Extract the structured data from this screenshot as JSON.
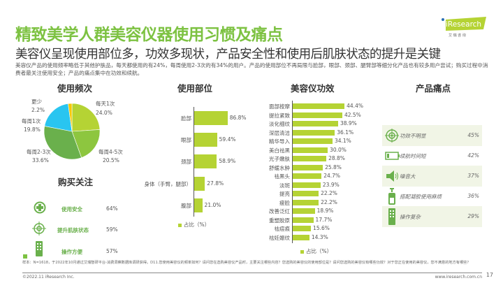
{
  "header": {
    "title": "精致美学人群美容仪器使用习惯及痛点",
    "subtitle": "美容仪呈现使用部位多，功效多现状，产品安全性和使用后肌肤状态的提升是关键",
    "description": "美容仪产品的使用频率略低于其他护肤品，每天都使用的有24%，每周使用2-3次的有34%的用户。产品的使用部位不再局限与脸部，眼部、颈部、腿臂部等细分化产品也有较多用户尝试；购买过程中消费者最关注使用安全；产品的痛点集中在功效和续航。",
    "logo_text": "iResearch",
    "logo_sub": "艾 瑞 咨 询"
  },
  "colors": {
    "brand": "#7dc242",
    "bar": "#b5d334"
  },
  "chart_data": [
    {
      "type": "pie",
      "title": "使用频次",
      "categories": [
        "每天1次",
        "每周4-5次",
        "每周2-3次",
        "每周1次",
        "更少"
      ],
      "values": [
        24.0,
        20.5,
        33.6,
        19.8,
        2.2
      ],
      "labels": [
        "24.0%",
        "20.5%",
        "33.6%",
        "19.8%",
        "2.2%"
      ],
      "colors": [
        "#b5d334",
        "#8dc63f",
        "#6ab04c",
        "#29c5f0",
        "#f7c800"
      ]
    },
    {
      "type": "bar",
      "title": "使用部位",
      "categories": [
        "脸部",
        "眼部",
        "颈部",
        "身体（手臂，腿部）",
        "腹部"
      ],
      "values": [
        86.8,
        59.4,
        58.9,
        27.8,
        21.0
      ],
      "labels": [
        "86.8%",
        "59.4%",
        "58.9%",
        "27.8%",
        "21.0%"
      ],
      "legend": "占比（%）",
      "xlim": [
        0,
        100
      ]
    },
    {
      "type": "bar",
      "title": "美容仪功效",
      "categories": [
        "面部按摩",
        "提拉紧致",
        "淡化细纹",
        "深层清洁",
        "精华导入",
        "美白祛黑",
        "光子嫩肤",
        "舒缓水肿",
        "祛黑头",
        "淡斑",
        "提亮",
        "瘦脸",
        "改善泛红",
        "重塑胶原",
        "祛痘痕",
        "祛妊娠纹"
      ],
      "values": [
        44.4,
        42.5,
        38.9,
        36.1,
        34.1,
        30.0,
        28.8,
        25.8,
        24.7,
        23.9,
        22.2,
        22.2,
        18.9,
        17.7,
        15.6,
        14.3
      ],
      "labels": [
        "44.4%",
        "42.5%",
        "38.9%",
        "36.1%",
        "34.1%",
        "30.0%",
        "28.8%",
        "25.8%",
        "24.7%",
        "23.9%",
        "22.2%",
        "22.2%",
        "18.9%",
        "17.7%",
        "15.6%",
        "14.3%"
      ],
      "legend": "占比（%）",
      "xlim": [
        0,
        50
      ]
    },
    {
      "type": "table",
      "title": "购买关注",
      "rows": [
        {
          "icon": "medical-cross-icon",
          "label": "使用安全",
          "value": "64%"
        },
        {
          "icon": "target-icon",
          "label": "提升肌肤状态",
          "value": "59%"
        },
        {
          "icon": "remote-icon",
          "label": "操作方便",
          "value": "57%"
        }
      ]
    },
    {
      "type": "table",
      "title": "产品痛点",
      "rows": [
        {
          "icon": "target-icon",
          "label": "功效不明显",
          "value": "45%"
        },
        {
          "icon": "battery-icon",
          "label": "续航时间短",
          "value": "42%"
        },
        {
          "icon": "speaker-icon",
          "label": "噪音大",
          "value": "37%"
        },
        {
          "icon": "gel-bottle-icon",
          "label": "搭配凝胶使用麻烦",
          "value": "36%"
        },
        {
          "icon": "remote-icon",
          "label": "操作复杂",
          "value": "29%"
        }
      ]
    }
  ],
  "footer": {
    "note": "样本：N=1618，于2022年10月通过艾瑞智研平台-消费洞察数据库调研获得。D11.您使用美容仪的频率如何？请问您在选购美容仪产品时，主要关注哪些内容？您选购的美容仪的使用部位是？请问您选购的美容仪有哪些功效？对于您正在使用的美容仪，您不满意的地方有哪些？",
    "copyright": "©2022.11 iResearch Inc.",
    "url": "www.iresearch.com.cn",
    "page": "17"
  }
}
